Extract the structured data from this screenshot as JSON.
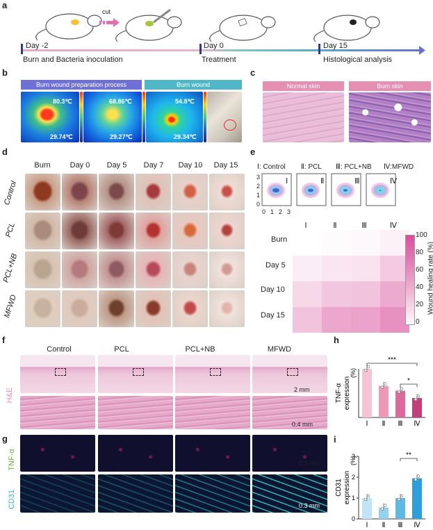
{
  "panels": {
    "a": "a",
    "b": "b",
    "c": "c",
    "d": "d",
    "e": "e",
    "f": "f",
    "g": "g",
    "h": "h",
    "i": "i"
  },
  "panel_a": {
    "cut_label": "cut",
    "day_neg2": "Day -2",
    "day0": "Day 0",
    "day15": "Day 15",
    "step1": "Burn and Bacteria inoculation",
    "step2": "Treatment",
    "step3": "Histological analysis"
  },
  "panel_b": {
    "header1": "Burn wound preparation process",
    "header2": "Burn wound",
    "temps": [
      "80.3℃",
      "29.74℃",
      "68.86℃",
      "29.27℃",
      "54.8℃",
      "29.34℃"
    ]
  },
  "panel_c": {
    "header1": "Normal skin",
    "header2": "Burn skin"
  },
  "panel_d": {
    "columns": [
      "Burn",
      "Day 0",
      "Day 5",
      "Day 7",
      "Day 10",
      "Day 15"
    ],
    "rows": [
      "Control",
      "PCL",
      "PCL+NB",
      "MFWD"
    ]
  },
  "panel_e": {
    "legend": [
      "Ⅰ: Control",
      "Ⅱ: PCL",
      "Ⅲ: PCL+NB",
      "Ⅳ:MFWD"
    ],
    "inset_ticks_y": [
      "3",
      "2",
      "1",
      "0"
    ],
    "inset_ticks_x": [
      "0",
      "1",
      "2",
      "3"
    ],
    "inset_labels": [
      "Ⅰ",
      "Ⅱ",
      "Ⅲ",
      "Ⅳ"
    ],
    "heatmap_cols": [
      "Ⅰ",
      "Ⅱ",
      "Ⅲ",
      "Ⅳ"
    ],
    "heatmap_rows": [
      "Burn",
      "Day 5",
      "Day 10",
      "Day 15"
    ],
    "colorbar_ticks": [
      "100",
      "80",
      "60",
      "40",
      "20",
      "0"
    ],
    "colorbar_label": "Wound healing rate (%)"
  },
  "panel_f": {
    "columns": [
      "Control",
      "PCL",
      "PCL+NB",
      "MFWD"
    ],
    "row_label": "H&E",
    "scale1": "2 mm",
    "scale2": "0.4 mm"
  },
  "panel_g": {
    "row1": "TNF-α",
    "row2": "CD31",
    "scale1": "0.3 mm",
    "scale2": "0.3 mm"
  },
  "chart_data": [
    {
      "type": "bar",
      "panel": "h",
      "categories": [
        "Ⅰ",
        "Ⅱ",
        "Ⅲ",
        "Ⅳ"
      ],
      "values": [
        1.0,
        0.65,
        0.55,
        0.4
      ],
      "colors": [
        "#f7c4d7",
        "#ee98b8",
        "#dc6a9c",
        "#c3407d"
      ],
      "ylabel_line1": "TNF-α",
      "ylabel_line2": "expression",
      "ylabel_unit": "(%)",
      "significance": [
        "***",
        "*"
      ]
    },
    {
      "type": "bar",
      "panel": "i",
      "categories": [
        "Ⅰ",
        "Ⅱ",
        "Ⅲ",
        "Ⅳ"
      ],
      "values": [
        1.0,
        0.55,
        1.0,
        1.95
      ],
      "colors": [
        "#bfe6f8",
        "#93d2f0",
        "#5fb8e6",
        "#2f9fdc"
      ],
      "ylabel_line1": "CD31",
      "ylabel_line2": "expression",
      "ylabel_unit": "(%)",
      "ylim": [
        0,
        3
      ],
      "yticks": [
        "0",
        "1",
        "2",
        "3"
      ],
      "significance": [
        "**"
      ]
    }
  ]
}
